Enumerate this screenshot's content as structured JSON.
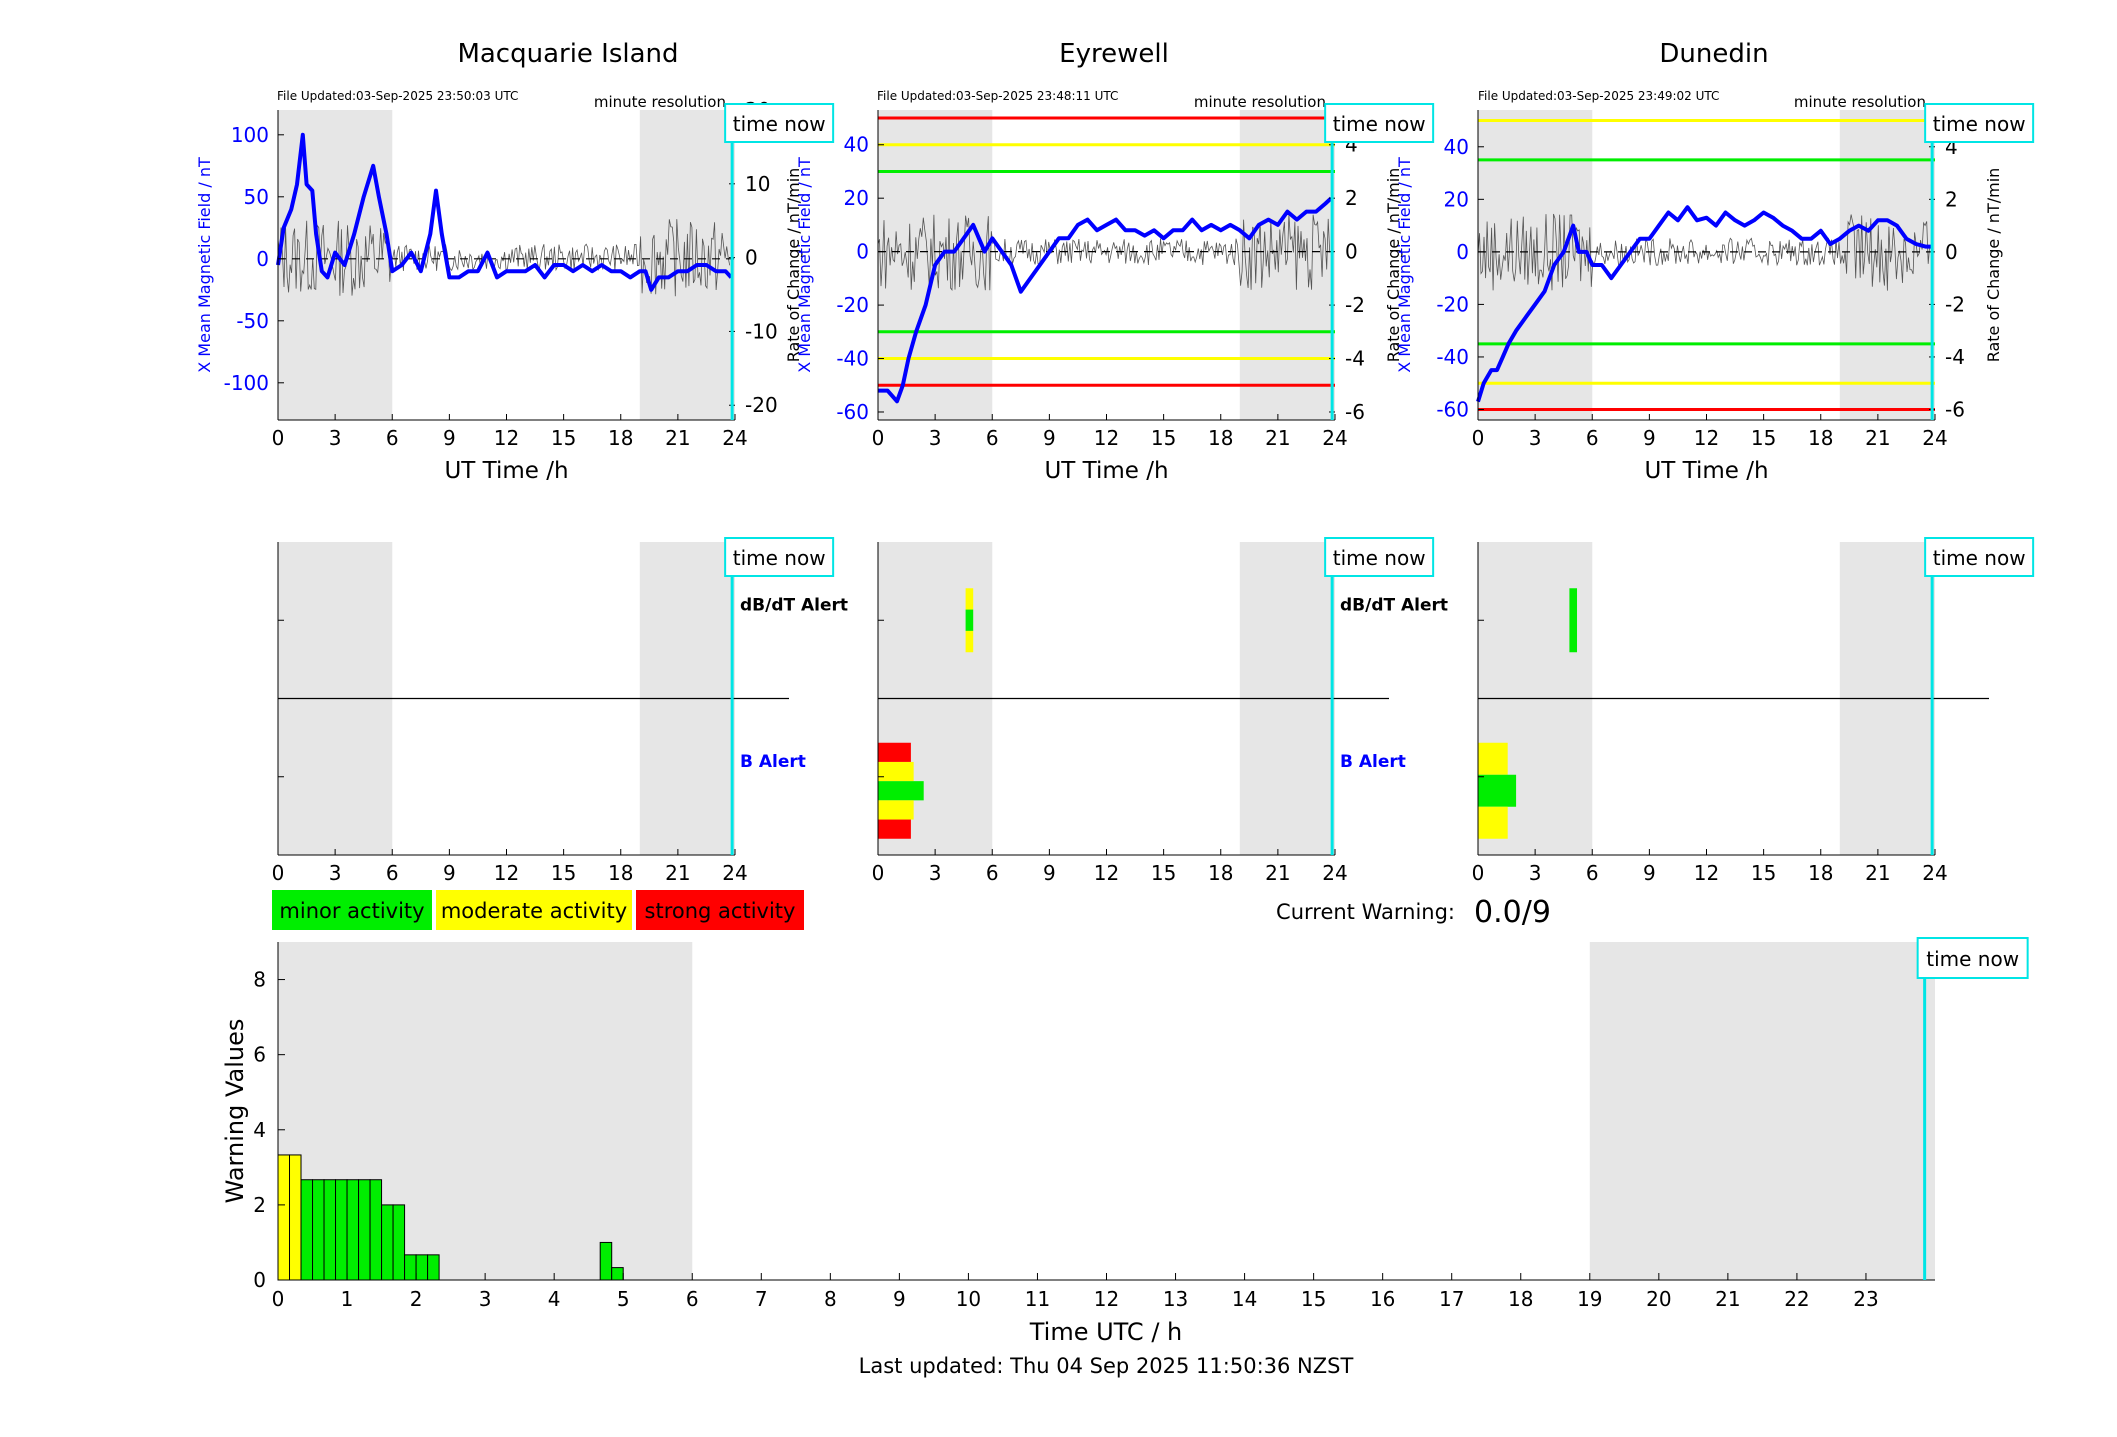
{
  "footer": {
    "last_updated": "Last updated: Thu 04 Sep 2025 11:50:36 NZST"
  },
  "legend": {
    "items": [
      {
        "label": "minor activity",
        "color": "#00ee00"
      },
      {
        "label": "moderate activity",
        "color": "#ffff00"
      },
      {
        "label": "strong activity",
        "color": "#ff0000"
      }
    ]
  },
  "current_warning": {
    "label": "Current Warning:",
    "value": "0.0/9"
  },
  "colors": {
    "field_line": "#0000ff",
    "rate_line": "#555555",
    "night_shade": "#e6e6e6",
    "time_now_line": "#00e5e5",
    "minor": "#00ee00",
    "moderate": "#ffff00",
    "strong": "#ff0000"
  },
  "common": {
    "time_now_label": "time now",
    "minute_resolution_label": "minute resolution",
    "x_label": "UT Time /h",
    "y_left_label": "X Mean Magnetic Field / nT",
    "y_right_label": "Rate of Change / nT/min",
    "dbdt_alert_label": "dB/dT Alert",
    "b_alert_label": "B Alert",
    "x_ticks": [
      0,
      3,
      6,
      9,
      12,
      15,
      18,
      21,
      24
    ],
    "night_shading_hours": [
      [
        0,
        6
      ],
      [
        19,
        24
      ]
    ],
    "time_now_hour": 23.85
  },
  "chart_data": [
    {
      "type": "line",
      "title": "Macquarie Island",
      "file_updated": "File Updated:03-Sep-2025 23:50:03 UTC",
      "xlim": [
        0,
        24
      ],
      "ylim": [
        -130,
        120
      ],
      "y2lim": [
        -22,
        20
      ],
      "yticks": [
        -100,
        -50,
        0,
        50,
        100
      ],
      "y2ticks": [
        -20,
        -10,
        0,
        10,
        20
      ],
      "thresholds": [],
      "series": [
        {
          "x": [
            0,
            0.3,
            0.7,
            1,
            1.3,
            1.5,
            1.8,
            2,
            2.3,
            2.6,
            3,
            3.5,
            4,
            4.5,
            5,
            5.3,
            5.7,
            6,
            6.5,
            7,
            7.5,
            8,
            8.3,
            8.6,
            9,
            9.5,
            10,
            10.5,
            11,
            11.5,
            12,
            12.5,
            13,
            13.5,
            14,
            14.5,
            15,
            15.5,
            16,
            16.5,
            17,
            17.5,
            18,
            18.5,
            19,
            19.3,
            19.6,
            20,
            20.5,
            21,
            21.5,
            22,
            22.5,
            23,
            23.5,
            23.8
          ],
          "y": [
            -5,
            25,
            40,
            60,
            100,
            60,
            55,
            20,
            -10,
            -15,
            5,
            -5,
            20,
            50,
            75,
            50,
            20,
            -10,
            -5,
            5,
            -10,
            20,
            55,
            20,
            -15,
            -15,
            -10,
            -10,
            5,
            -15,
            -10,
            -10,
            -10,
            -5,
            -15,
            -5,
            -5,
            -10,
            -5,
            -10,
            -5,
            -10,
            -10,
            -15,
            -10,
            -10,
            -25,
            -15,
            -15,
            -10,
            -10,
            -5,
            -5,
            -10,
            -10,
            -15
          ]
        }
      ],
      "activity": {
        "dbdt": [],
        "b": []
      }
    },
    {
      "type": "line",
      "title": "Eyrewell",
      "file_updated": "File Updated:03-Sep-2025 23:48:11 UTC",
      "xlim": [
        0,
        24
      ],
      "ylim": [
        -63,
        53
      ],
      "y2lim": [
        -6.3,
        5.3
      ],
      "yticks": [
        -60,
        -40,
        -20,
        0,
        20,
        40
      ],
      "y2ticks": [
        -6,
        -4,
        -2,
        0,
        2,
        4
      ],
      "thresholds": [
        {
          "value": 50,
          "color": "#ff0000"
        },
        {
          "value": 40,
          "color": "#ffff00"
        },
        {
          "value": 30,
          "color": "#00ee00"
        },
        {
          "value": -30,
          "color": "#00ee00"
        },
        {
          "value": -40,
          "color": "#ffff00"
        },
        {
          "value": -50,
          "color": "#ff0000"
        }
      ],
      "series": [
        {
          "x": [
            0,
            0.5,
            1,
            1.3,
            1.6,
            2,
            2.5,
            3,
            3.5,
            4,
            4.5,
            5,
            5.3,
            5.6,
            6,
            6.5,
            7,
            7.5,
            8,
            8.5,
            9,
            9.5,
            10,
            10.5,
            11,
            11.5,
            12,
            12.5,
            13,
            13.5,
            14,
            14.5,
            15,
            15.5,
            16,
            16.5,
            17,
            17.5,
            18,
            18.5,
            19,
            19.5,
            20,
            20.5,
            21,
            21.5,
            22,
            22.5,
            23,
            23.5,
            23.8
          ],
          "y": [
            -52,
            -52,
            -56,
            -50,
            -40,
            -30,
            -20,
            -5,
            0,
            0,
            5,
            10,
            5,
            0,
            5,
            0,
            -5,
            -15,
            -10,
            -5,
            0,
            5,
            5,
            10,
            12,
            8,
            10,
            12,
            8,
            8,
            6,
            8,
            5,
            8,
            8,
            12,
            8,
            10,
            8,
            10,
            8,
            5,
            10,
            12,
            10,
            15,
            12,
            15,
            15,
            18,
            20
          ]
        }
      ],
      "activity": {
        "dbdt": [
          {
            "x": [
              4.6,
              5.0
            ],
            "colors": [
              "yellow",
              "green",
              "yellow"
            ]
          }
        ],
        "b": [
          {
            "x": [
              0,
              2.4
            ],
            "colors": [
              "red",
              "yellow",
              "green",
              "yellow",
              "red"
            ]
          }
        ]
      }
    },
    {
      "type": "line",
      "title": "Dunedin",
      "file_updated": "File Updated:03-Sep-2025 23:49:02 UTC",
      "xlim": [
        0,
        24
      ],
      "ylim": [
        -64,
        54
      ],
      "y2lim": [
        -6.4,
        5.4
      ],
      "yticks": [
        -60,
        -40,
        -20,
        0,
        20,
        40
      ],
      "y2ticks": [
        -6,
        -4,
        -2,
        0,
        2,
        4
      ],
      "thresholds": [
        {
          "value": 50,
          "color": "#ffff00"
        },
        {
          "value": 35,
          "color": "#00ee00"
        },
        {
          "value": -35,
          "color": "#00ee00"
        },
        {
          "value": -50,
          "color": "#ffff00"
        },
        {
          "value": -60,
          "color": "#ff0000"
        }
      ],
      "series": [
        {
          "x": [
            0,
            0.3,
            0.7,
            1,
            1.3,
            1.6,
            2,
            2.5,
            3,
            3.5,
            4,
            4.5,
            5,
            5.3,
            5.7,
            6,
            6.5,
            7,
            7.5,
            8,
            8.5,
            9,
            9.5,
            10,
            10.5,
            11,
            11.5,
            12,
            12.5,
            13,
            13.5,
            14,
            14.5,
            15,
            15.5,
            16,
            16.5,
            17,
            17.5,
            18,
            18.5,
            19,
            19.5,
            20,
            20.5,
            21,
            21.5,
            22,
            22.5,
            23,
            23.5,
            23.8
          ],
          "y": [
            -57,
            -50,
            -45,
            -45,
            -40,
            -35,
            -30,
            -25,
            -20,
            -15,
            -5,
            0,
            10,
            0,
            0,
            -5,
            -5,
            -10,
            -5,
            0,
            5,
            5,
            10,
            15,
            12,
            17,
            12,
            13,
            10,
            15,
            12,
            10,
            12,
            15,
            13,
            10,
            8,
            5,
            5,
            8,
            3,
            5,
            8,
            10,
            8,
            12,
            12,
            10,
            5,
            3,
            2,
            2
          ]
        }
      ],
      "activity": {
        "dbdt": [
          {
            "x": [
              4.8,
              5.2
            ],
            "colors": [
              "green"
            ]
          }
        ],
        "b": [
          {
            "x": [
              0,
              2
            ],
            "colors": [
              "yellow",
              "green",
              "yellow"
            ]
          }
        ]
      }
    },
    {
      "type": "bar",
      "title": "",
      "xlabel": "Time UTC / h",
      "ylabel": "Warning Values",
      "xlim": [
        0,
        24
      ],
      "ylim": [
        0,
        9
      ],
      "xticks": [
        0,
        1,
        2,
        3,
        4,
        5,
        6,
        7,
        8,
        9,
        10,
        11,
        12,
        13,
        14,
        15,
        16,
        17,
        18,
        19,
        20,
        21,
        22,
        23
      ],
      "yticks": [
        0,
        2,
        4,
        6,
        8
      ],
      "bar_width_h": 0.1667,
      "bars": [
        {
          "x": 0.0,
          "value": 3.33,
          "color": "#ffff00"
        },
        {
          "x": 0.1667,
          "value": 3.33,
          "color": "#ffff00"
        },
        {
          "x": 0.3333,
          "value": 2.67,
          "color": "#00ee00"
        },
        {
          "x": 0.5,
          "value": 2.67,
          "color": "#00ee00"
        },
        {
          "x": 0.6667,
          "value": 2.67,
          "color": "#00ee00"
        },
        {
          "x": 0.8333,
          "value": 2.67,
          "color": "#00ee00"
        },
        {
          "x": 1.0,
          "value": 2.67,
          "color": "#00ee00"
        },
        {
          "x": 1.1667,
          "value": 2.67,
          "color": "#00ee00"
        },
        {
          "x": 1.3333,
          "value": 2.67,
          "color": "#00ee00"
        },
        {
          "x": 1.5,
          "value": 2.0,
          "color": "#00ee00"
        },
        {
          "x": 1.6667,
          "value": 2.0,
          "color": "#00ee00"
        },
        {
          "x": 1.8333,
          "value": 0.67,
          "color": "#00ee00"
        },
        {
          "x": 2.0,
          "value": 0.67,
          "color": "#00ee00"
        },
        {
          "x": 2.1667,
          "value": 0.67,
          "color": "#00ee00"
        },
        {
          "x": 4.6667,
          "value": 1.0,
          "color": "#00ee00"
        },
        {
          "x": 4.8333,
          "value": 0.33,
          "color": "#00ee00"
        }
      ],
      "night_shading_hours": [
        [
          0,
          6
        ],
        [
          19,
          24
        ]
      ],
      "time_now_hour": 23.85
    }
  ]
}
